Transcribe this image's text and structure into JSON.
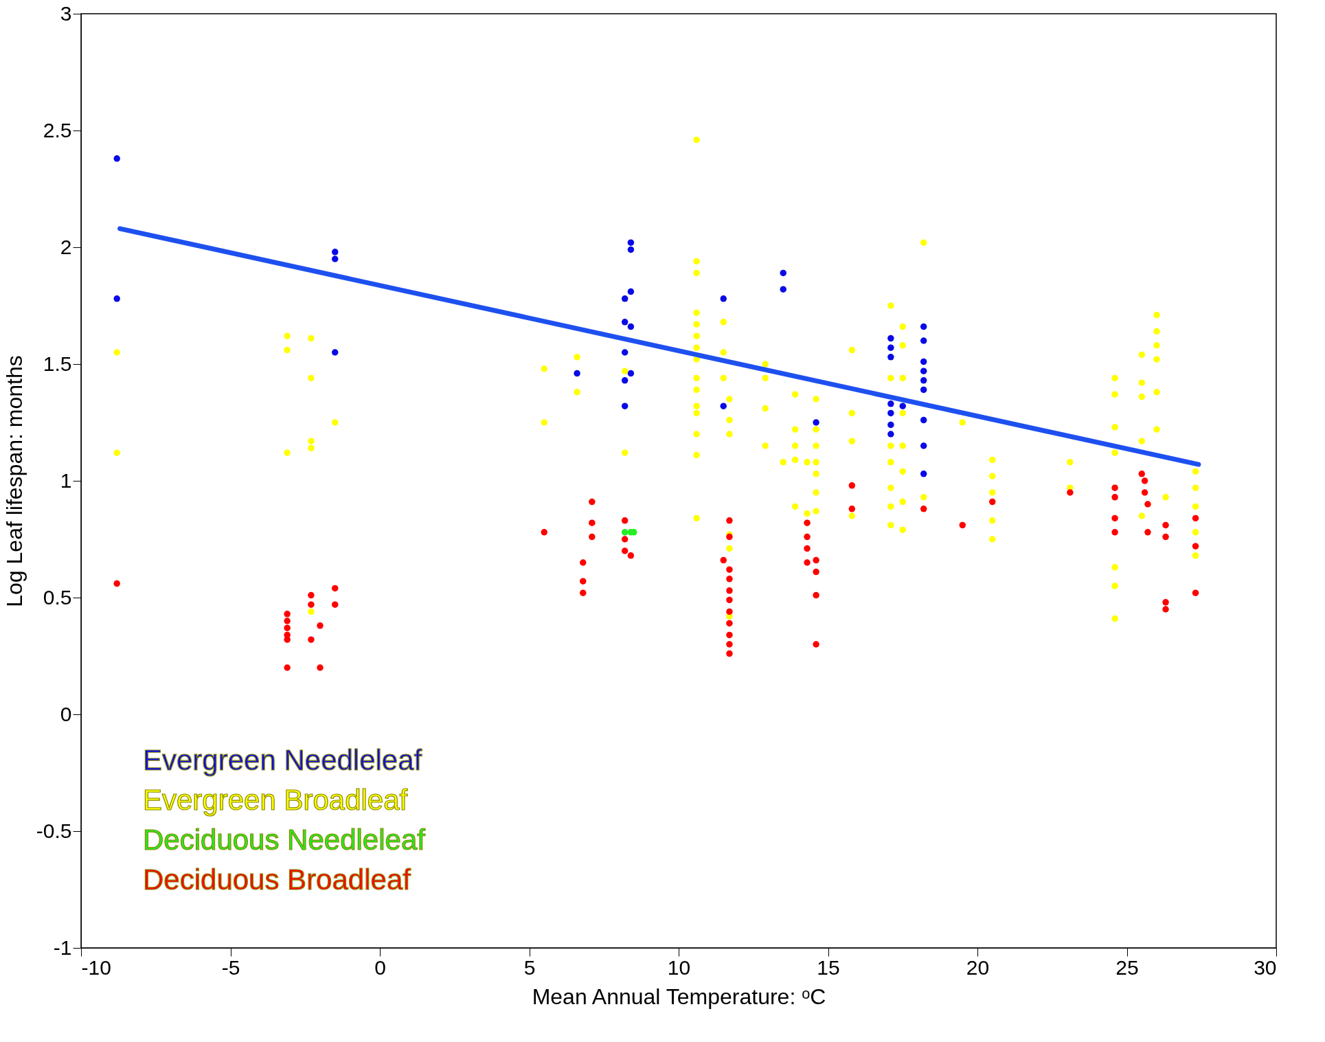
{
  "chart_data": {
    "type": "scatter",
    "xlabel": "Mean Annual Temperature: ᵒC",
    "ylabel": "Log Leaf lifespan: months",
    "xlim": [
      -10,
      30
    ],
    "xticks": [
      -10,
      -5,
      0,
      5,
      10,
      15,
      20,
      25,
      30
    ],
    "ylim": [
      -1,
      3
    ],
    "yticks": [
      -1,
      -0.5,
      0,
      0.5,
      1,
      1.5,
      2,
      2.5,
      3
    ],
    "grid": false,
    "legend": "bottom left",
    "marker": "circle",
    "series": [
      {
        "name": "Evergreen  Needleleaf",
        "color": "#0a0ae6",
        "x": [
          -8.8,
          -8.8,
          -1.5,
          -1.5,
          -1.5,
          6.6,
          8.2,
          8.2,
          8.2,
          8.2,
          8.2,
          8.4,
          8.4,
          8.4,
          8.4,
          8.4,
          11.5,
          11.5,
          13.5,
          13.5,
          14.6,
          17.1,
          17.1,
          17.1,
          17.1,
          17.1,
          17.1,
          17.1,
          17.5,
          18.2,
          18.2,
          18.2,
          18.2,
          18.2,
          18.2,
          18.2,
          18.2,
          18.2
        ],
        "values": [
          2.38,
          1.78,
          1.98,
          1.95,
          1.55,
          1.46,
          1.78,
          1.68,
          1.55,
          1.43,
          1.32,
          2.02,
          1.99,
          1.81,
          1.66,
          1.46,
          1.78,
          1.32,
          1.89,
          1.82,
          1.25,
          1.61,
          1.57,
          1.53,
          1.33,
          1.29,
          1.24,
          1.2,
          1.32,
          1.66,
          1.6,
          1.51,
          1.47,
          1.43,
          1.39,
          1.26,
          1.15,
          1.03
        ]
      },
      {
        "name": "Evergreen  Broadleaf",
        "color": "#ffff00",
        "x": [
          -8.8,
          -8.8,
          -3.1,
          -3.1,
          -3.1,
          -2.3,
          -2.3,
          -2.3,
          -2.3,
          -2.3,
          -1.5,
          5.5,
          5.5,
          6.6,
          6.6,
          8.2,
          8.2,
          10.6,
          10.6,
          10.6,
          10.6,
          10.6,
          10.6,
          10.6,
          10.6,
          10.6,
          10.6,
          10.6,
          10.6,
          10.6,
          10.6,
          10.6,
          11.5,
          11.5,
          11.5,
          11.7,
          11.7,
          11.7,
          11.7,
          11.7,
          11.7,
          12.9,
          12.9,
          12.9,
          12.9,
          13.5,
          13.9,
          13.9,
          13.9,
          13.9,
          13.9,
          14.3,
          14.3,
          14.6,
          14.6,
          14.6,
          14.6,
          14.6,
          14.6,
          14.6,
          15.8,
          15.8,
          15.8,
          15.8,
          17.1,
          17.1,
          17.1,
          17.1,
          17.1,
          17.1,
          17.1,
          17.5,
          17.5,
          17.5,
          17.5,
          17.5,
          17.5,
          17.5,
          17.5,
          18.2,
          18.2,
          19.5,
          20.5,
          20.5,
          20.5,
          20.5,
          20.5,
          23.1,
          23.1,
          24.6,
          24.6,
          24.6,
          24.6,
          24.6,
          24.6,
          24.6,
          25.5,
          25.5,
          25.5,
          25.5,
          25.5,
          26,
          26,
          26,
          26,
          26,
          26,
          26.3,
          27.3,
          27.3,
          27.3,
          27.3,
          27.3
        ],
        "values": [
          1.55,
          1.12,
          1.62,
          1.56,
          1.12,
          1.61,
          1.44,
          1.17,
          1.14,
          0.44,
          1.25,
          1.48,
          1.25,
          1.53,
          1.38,
          1.12,
          1.47,
          2.46,
          1.94,
          1.89,
          1.72,
          1.67,
          1.62,
          1.57,
          1.52,
          1.44,
          1.39,
          1.32,
          1.29,
          1.2,
          1.11,
          0.84,
          1.68,
          1.55,
          1.44,
          1.35,
          1.26,
          1.2,
          0.77,
          0.71,
          0.42,
          1.5,
          1.44,
          1.31,
          1.15,
          1.08,
          1.37,
          1.22,
          1.15,
          1.09,
          0.89,
          1.08,
          0.86,
          1.35,
          1.22,
          1.15,
          1.08,
          1.03,
          0.95,
          0.87,
          1.56,
          1.29,
          1.17,
          0.85,
          1.75,
          1.44,
          1.15,
          1.08,
          0.97,
          0.89,
          0.81,
          1.66,
          1.58,
          1.44,
          1.29,
          1.15,
          1.04,
          0.91,
          0.79,
          2.02,
          0.93,
          1.25,
          1.09,
          1.02,
          0.95,
          0.83,
          0.75,
          1.08,
          0.97,
          1.44,
          1.37,
          1.23,
          1.12,
          0.63,
          0.55,
          0.41,
          1.54,
          1.42,
          1.36,
          1.17,
          0.85,
          1.71,
          1.64,
          1.58,
          1.52,
          1.38,
          1.22,
          0.93,
          1.04,
          0.97,
          0.89,
          0.78,
          0.68
        ]
      },
      {
        "name": "Deciduous Needleleaf",
        "color": "#22ee22",
        "x": [
          8.2,
          8.4,
          8.5
        ],
        "values": [
          0.78,
          0.78,
          0.78
        ]
      },
      {
        "name": "Deciduous Broadleaf",
        "color": "#ff0000",
        "x": [
          -8.8,
          -3.1,
          -3.1,
          -3.1,
          -3.1,
          -3.1,
          -3.1,
          -2.3,
          -2.3,
          -2.3,
          -2,
          -2,
          -1.5,
          -1.5,
          5.5,
          6.8,
          6.8,
          6.8,
          7.1,
          7.1,
          7.1,
          8.2,
          8.2,
          8.2,
          8.4,
          11.7,
          11.7,
          11.5,
          11.7,
          11.7,
          11.7,
          11.7,
          11.7,
          11.7,
          11.7,
          11.7,
          11.7,
          14.3,
          14.3,
          14.3,
          14.3,
          14.6,
          14.6,
          14.6,
          14.6,
          15.8,
          15.8,
          18.2,
          19.5,
          20.5,
          23.1,
          24.6,
          24.6,
          24.6,
          24.6,
          25.5,
          25.6,
          25.6,
          25.7,
          25.7,
          26.3,
          26.3,
          26.3,
          26.3,
          27.3,
          27.3,
          27.3
        ],
        "values": [
          0.56,
          0.43,
          0.4,
          0.37,
          0.34,
          0.32,
          0.2,
          0.51,
          0.47,
          0.32,
          0.38,
          0.2,
          0.54,
          0.47,
          0.78,
          0.65,
          0.57,
          0.52,
          0.91,
          0.82,
          0.76,
          0.83,
          0.75,
          0.7,
          0.68,
          0.83,
          0.76,
          0.66,
          0.62,
          0.58,
          0.53,
          0.49,
          0.44,
          0.39,
          0.34,
          0.3,
          0.26,
          0.82,
          0.76,
          0.71,
          0.65,
          0.66,
          0.61,
          0.51,
          0.3,
          0.98,
          0.88,
          0.88,
          0.81,
          0.91,
          0.95,
          0.97,
          0.93,
          0.84,
          0.78,
          1.03,
          1,
          0.95,
          0.9,
          0.78,
          0.81,
          0.76,
          0.48,
          0.45,
          0.84,
          0.72,
          0.52
        ]
      },
      {
        "type": "line",
        "marker": "none",
        "color": "#1e50f0",
        "x": [
          -8.7,
          27.4
        ],
        "values": [
          2.08,
          1.07
        ]
      }
    ]
  }
}
